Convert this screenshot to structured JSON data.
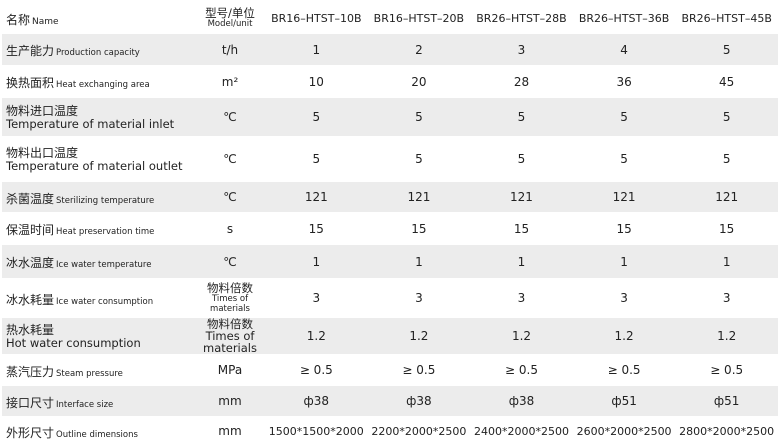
{
  "header": {
    "name_zh": "名称",
    "name_en": "Name",
    "unit_zh": "型号/单位",
    "unit_en": "Model/unit",
    "models": [
      "BR16–HTST–10B",
      "BR16–HTST–20B",
      "BR26–HTST–28B",
      "BR26–HTST–36B",
      "BR26–HTST–45B"
    ]
  },
  "rows": [
    {
      "zh": "生产能力",
      "en": "Production capacity",
      "unit": "t/h",
      "values": [
        "1",
        "2",
        "3",
        "4",
        "5"
      ]
    },
    {
      "zh": "换热面积",
      "en": "Heat exchanging area",
      "unit": "m²",
      "values": [
        "10",
        "20",
        "28",
        "36",
        "45"
      ]
    },
    {
      "zh": "物料进口温度",
      "en": "Temperature of material inlet",
      "unit": "℃",
      "values": [
        "5",
        "5",
        "5",
        "5",
        "5"
      ]
    },
    {
      "zh": "物料出口温度",
      "en": "Temperature of material outlet",
      "unit": "℃",
      "values": [
        "5",
        "5",
        "5",
        "5",
        "5"
      ]
    },
    {
      "zh": "杀菌温度",
      "en": "Sterilizing temperature",
      "unit": "℃",
      "values": [
        "121",
        "121",
        "121",
        "121",
        "121"
      ]
    },
    {
      "zh": "保温时间",
      "en": "Heat preservation time",
      "unit": "s",
      "values": [
        "15",
        "15",
        "15",
        "15",
        "15"
      ]
    },
    {
      "zh": "冰水温度",
      "en": "Ice water temperature",
      "unit": "℃",
      "values": [
        "1",
        "1",
        "1",
        "1",
        "1"
      ]
    },
    {
      "zh": "冰水耗量",
      "en": "Ice water consumption",
      "unit_zh": "物料倍数",
      "unit_en": "Times of materials",
      "values": [
        "3",
        "3",
        "3",
        "3",
        "3"
      ]
    },
    {
      "zh": "热水耗量",
      "en": "Hot water consumption",
      "unit_zh": "物料倍数",
      "unit_en": "Times of materials",
      "values": [
        "1.2",
        "1.2",
        "1.2",
        "1.2",
        "1.2"
      ]
    },
    {
      "zh": "蒸汽压力",
      "en": "Steam pressure",
      "unit": "MPa",
      "values": [
        "≥ 0.5",
        "≥ 0.5",
        "≥ 0.5",
        "≥ 0.5",
        "≥ 0.5"
      ]
    },
    {
      "zh": "接口尺寸",
      "en": "Interface size",
      "unit": "mm",
      "values": [
        "ф38",
        "ф38",
        "ф38",
        "ф51",
        "ф51"
      ]
    },
    {
      "zh": "外形尺寸",
      "en": "Outline dimensions",
      "unit": "mm",
      "values": [
        "1500*1500*2000",
        "2200*2000*2500",
        "2400*2000*2500",
        "2600*2000*2500",
        "2800*2000*2500"
      ]
    }
  ]
}
